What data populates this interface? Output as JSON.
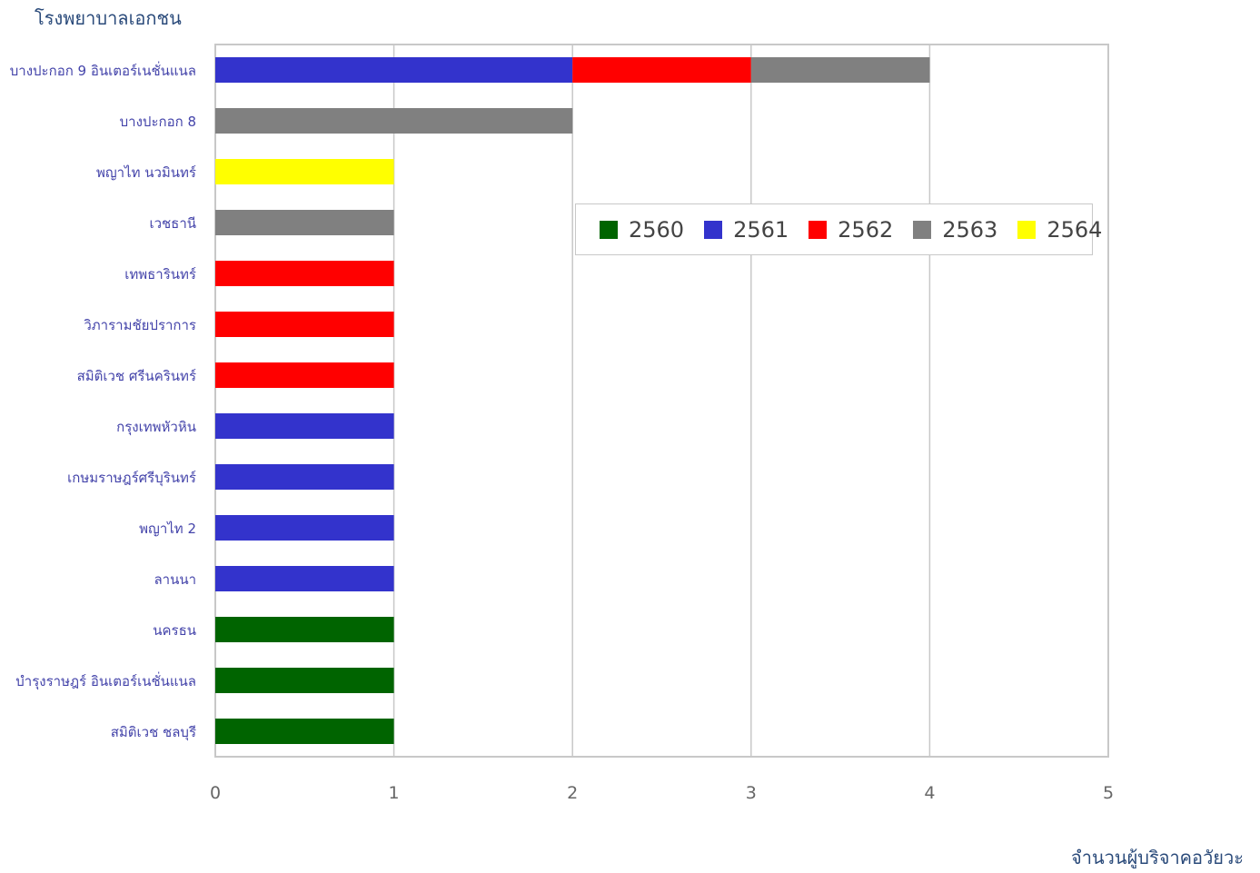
{
  "chart_data": {
    "type": "bar",
    "orientation": "horizontal",
    "stacked": true,
    "ylabel": "โรงพยาบาลเอกชน",
    "xlabel": "จำนวนผู้บริจาคอวัยวะ",
    "xlim": [
      0,
      5
    ],
    "xticks": [
      0,
      1,
      2,
      3,
      4,
      5
    ],
    "grid": true,
    "legend_position": "right-center",
    "categories": [
      "บางปะกอก 9 อินเตอร์เนชั่นแนล",
      "บางปะกอก 8",
      "พญาไท นวมินทร์",
      "เวชธานี",
      "เทพธารินทร์",
      "วิภารามชัยปราการ",
      "สมิติเวช ศรีนครินทร์",
      "กรุงเทพหัวหิน",
      "เกษมราษฎร์ศรีบุรินทร์",
      "พญาไท 2",
      "ลานนา",
      "นครธน",
      "บำรุงราษฎร์ อินเตอร์เนชั่นแนล",
      "สมิติเวช ชลบุรี"
    ],
    "series": [
      {
        "name": "2560",
        "color": "#006400",
        "values": [
          0,
          0,
          0,
          0,
          0,
          0,
          0,
          0,
          0,
          0,
          0,
          1,
          1,
          1
        ]
      },
      {
        "name": "2561",
        "color": "#3333cc",
        "values": [
          2,
          0,
          0,
          0,
          0,
          0,
          0,
          1,
          1,
          1,
          1,
          0,
          0,
          0
        ]
      },
      {
        "name": "2562",
        "color": "#ff0000",
        "values": [
          1,
          0,
          0,
          0,
          1,
          1,
          1,
          0,
          0,
          0,
          0,
          0,
          0,
          0
        ]
      },
      {
        "name": "2563",
        "color": "#808080",
        "values": [
          1,
          2,
          0,
          1,
          0,
          0,
          0,
          0,
          0,
          0,
          0,
          0,
          0,
          0
        ]
      },
      {
        "name": "2564",
        "color": "#ffff00",
        "values": [
          0,
          0,
          1,
          0,
          0,
          0,
          0,
          0,
          0,
          0,
          0,
          0,
          0,
          0
        ]
      }
    ]
  }
}
